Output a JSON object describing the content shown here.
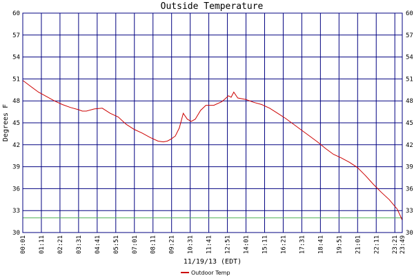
{
  "chart_data": {
    "type": "line",
    "title": "Outside Temperature",
    "xlabel": "11/19/13 (EDT)",
    "ylabel": "Degrees F",
    "ylim": [
      30,
      60
    ],
    "yticks": [
      30,
      33,
      36,
      39,
      42,
      45,
      48,
      51,
      54,
      57,
      60
    ],
    "grid": true,
    "x_tick_labels": [
      "00:01",
      "01:11",
      "02:21",
      "03:31",
      "04:41",
      "05:51",
      "07:01",
      "08:11",
      "09:21",
      "10:31",
      "11:41",
      "12:51",
      "14:01",
      "15:11",
      "16:21",
      "17:31",
      "18:41",
      "19:51",
      "21:01",
      "22:11",
      "23:21",
      "23:49"
    ],
    "reference_line": {
      "value": 32,
      "color": "#4caf50"
    },
    "legend_position": "bottom-center",
    "series": [
      {
        "name": "Outdoor Temp",
        "color": "#cc0000",
        "x": [
          "00:01",
          "00:30",
          "01:00",
          "01:30",
          "02:00",
          "02:30",
          "03:00",
          "03:30",
          "03:45",
          "04:00",
          "04:30",
          "05:00",
          "05:30",
          "06:00",
          "06:30",
          "07:00",
          "07:30",
          "08:00",
          "08:30",
          "08:50",
          "09:05",
          "09:20",
          "09:35",
          "09:50",
          "10:05",
          "10:20",
          "10:35",
          "10:50",
          "11:10",
          "11:30",
          "12:00",
          "12:30",
          "12:40",
          "12:55",
          "13:05",
          "13:15",
          "13:30",
          "14:00",
          "14:30",
          "15:00",
          "15:30",
          "16:00",
          "16:30",
          "17:00",
          "17:30",
          "18:00",
          "18:30",
          "19:00",
          "19:30",
          "20:00",
          "20:30",
          "21:00",
          "21:30",
          "22:00",
          "22:30",
          "23:00",
          "23:30",
          "23:49"
        ],
        "values": [
          50.8,
          50.0,
          49.2,
          48.6,
          48.0,
          47.5,
          47.1,
          46.8,
          46.6,
          46.6,
          46.9,
          47.0,
          46.3,
          45.8,
          44.8,
          44.1,
          43.6,
          43.0,
          42.5,
          42.4,
          42.5,
          42.8,
          43.2,
          44.3,
          46.3,
          45.5,
          45.2,
          45.5,
          46.7,
          47.4,
          47.4,
          47.9,
          48.2,
          48.7,
          48.5,
          49.2,
          48.4,
          48.2,
          47.8,
          47.5,
          47.0,
          46.3,
          45.6,
          44.8,
          44.0,
          43.2,
          42.4,
          41.5,
          40.7,
          40.2,
          39.6,
          38.9,
          37.8,
          36.6,
          35.5,
          34.5,
          33.2,
          31.7
        ]
      }
    ]
  }
}
